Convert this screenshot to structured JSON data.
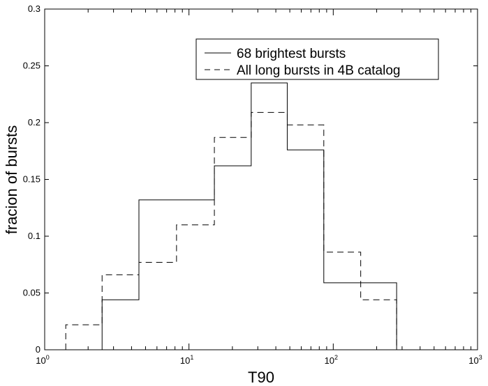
{
  "chart_data": {
    "type": "histogram-step",
    "xlabel": "T90",
    "ylabel": "fracion of bursts",
    "xscale": "log",
    "xlim": [
      1,
      1000
    ],
    "ylim": [
      0,
      0.3
    ],
    "x_ticks": [
      {
        "value": 1,
        "base": "10",
        "exp": "0"
      },
      {
        "value": 10,
        "base": "10",
        "exp": "1"
      },
      {
        "value": 100,
        "base": "10",
        "exp": "2"
      },
      {
        "value": 1000,
        "base": "10",
        "exp": "3"
      }
    ],
    "y_ticks": [
      {
        "value": 0,
        "label": "0"
      },
      {
        "value": 0.05,
        "label": "0.05"
      },
      {
        "value": 0.1,
        "label": "0.1"
      },
      {
        "value": 0.15,
        "label": "0.15"
      },
      {
        "value": 0.2,
        "label": "0.2"
      },
      {
        "value": 0.25,
        "label": "0.25"
      },
      {
        "value": 0.3,
        "label": "0.3"
      }
    ],
    "legend_position": "top-right",
    "series": [
      {
        "name": "68 brightest bursts",
        "line_style": "solid",
        "color": "#000000",
        "bins": [
          {
            "x0": 2.5,
            "x1": 4.5,
            "y": 0.044
          },
          {
            "x0": 4.5,
            "x1": 8.2,
            "y": 0.132
          },
          {
            "x0": 8.2,
            "x1": 15,
            "y": 0.132
          },
          {
            "x0": 15,
            "x1": 27,
            "y": 0.162
          },
          {
            "x0": 27,
            "x1": 48,
            "y": 0.235
          },
          {
            "x0": 48,
            "x1": 86,
            "y": 0.176
          },
          {
            "x0": 86,
            "x1": 155,
            "y": 0.059
          },
          {
            "x0": 155,
            "x1": 275,
            "y": 0.059
          }
        ]
      },
      {
        "name": "All long bursts in 4B catalog",
        "line_style": "dashed",
        "color": "#000000",
        "bins": [
          {
            "x0": 1.4,
            "x1": 2.5,
            "y": 0.022
          },
          {
            "x0": 2.5,
            "x1": 4.5,
            "y": 0.066
          },
          {
            "x0": 4.5,
            "x1": 8.2,
            "y": 0.077
          },
          {
            "x0": 8.2,
            "x1": 15,
            "y": 0.11
          },
          {
            "x0": 15,
            "x1": 27,
            "y": 0.187
          },
          {
            "x0": 27,
            "x1": 48,
            "y": 0.209
          },
          {
            "x0": 48,
            "x1": 86,
            "y": 0.198
          },
          {
            "x0": 86,
            "x1": 155,
            "y": 0.086
          },
          {
            "x0": 155,
            "x1": 275,
            "y": 0.044
          }
        ]
      }
    ]
  }
}
